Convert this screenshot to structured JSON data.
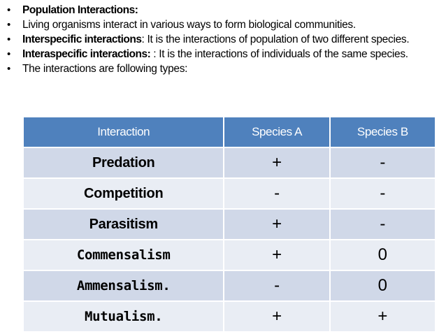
{
  "bullets": [
    {
      "bold": "Population Interactions:",
      "text": ""
    },
    {
      "bold": "",
      "text": "Living organisms interact in various ways to form biological communities."
    },
    {
      "bold": "Interspecific interactions",
      "text": ": It is the interactions of population of two different species."
    },
    {
      "bold": "Interaspecific interactions:",
      "text": " : It is the interactions of individuals of the same species."
    },
    {
      "bold": "",
      "text": "The interactions are following types:"
    }
  ],
  "table": {
    "headers": [
      "Interaction",
      "Species A",
      "Species B"
    ],
    "rows": [
      {
        "name": "Predation",
        "a": "+",
        "b": "-"
      },
      {
        "name": "Competition",
        "a": "-",
        "b": "-"
      },
      {
        "name": "Parasitism",
        "a": "+",
        "b": "-"
      },
      {
        "name": "Commensalism",
        "a": "+",
        "b": "0"
      },
      {
        "name": "Ammensalism.",
        "a": "-",
        "b": "0"
      },
      {
        "name": "Mutualism.",
        "a": "+",
        "b": "+"
      }
    ]
  }
}
